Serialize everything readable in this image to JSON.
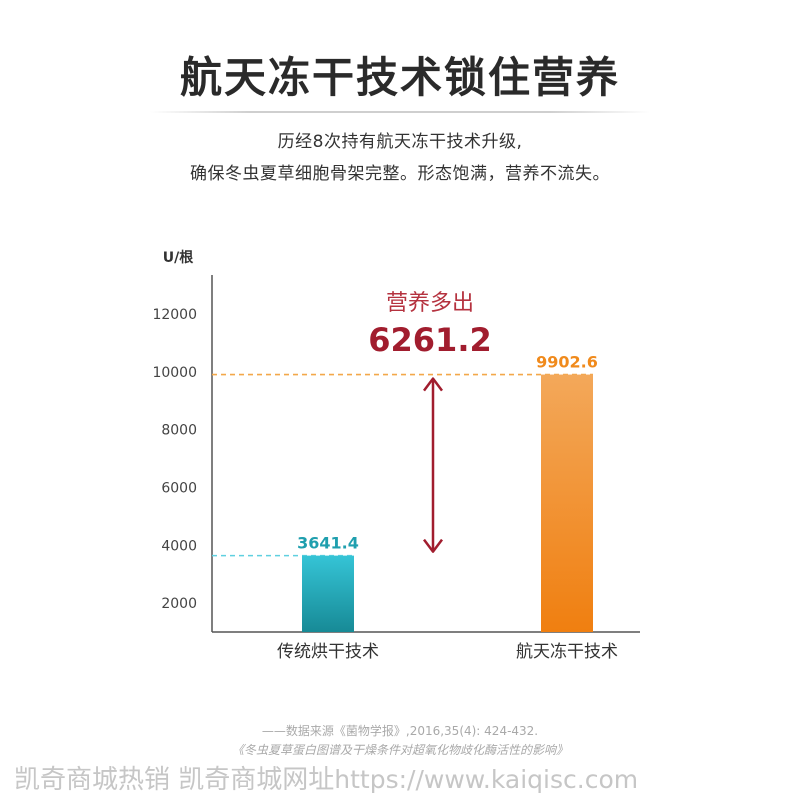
{
  "header": {
    "title": "航天冻干技术锁住营养",
    "subtitle_line1": "历经8次持有航天冻干技术升级,",
    "subtitle_line2": "确保冬虫夏草细胞骨架完整。形态饱满，营养不流失。"
  },
  "chart_data": {
    "type": "bar",
    "ylabel": "U/根",
    "yticks": [
      2000,
      4000,
      6000,
      8000,
      10000,
      12000
    ],
    "ylim": [
      1000,
      13000
    ],
    "grid": false,
    "categories": [
      "传统烘干技术",
      "航天冻干技术"
    ],
    "values": [
      3641.4,
      9902.6
    ],
    "value_labels": [
      "3641.4",
      "9902.6"
    ],
    "colors": [
      "#1f9fae",
      "#f08a1c"
    ],
    "reference_lines": [
      "dashed at each bar value"
    ],
    "annotation": {
      "label": "营养多出",
      "value": "6261.2",
      "color": "#a11d2e"
    }
  },
  "source": {
    "line1": "——数据来源《菌物学报》,2016,35(4): 424-432.",
    "line2": "《冬虫夏草蛋白图谱及干燥条件对超氧化物歧化酶活性的影响》"
  },
  "watermark": {
    "text": "凯奇商城热销  凯奇商城网址",
    "url": "https://www.kaiqisc.com"
  }
}
